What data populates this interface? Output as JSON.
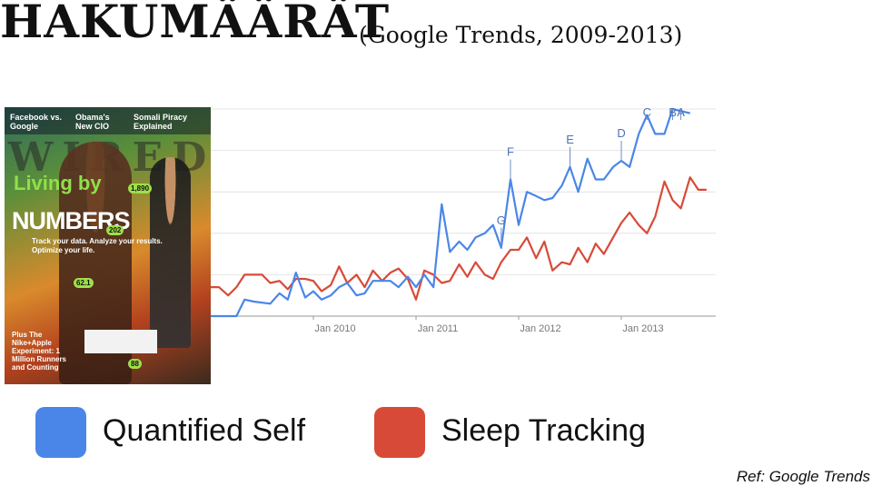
{
  "header": {
    "title": "HAKUMÄÄRÄT",
    "subtitle": "(Google Trends, 2009-2013)"
  },
  "cover": {
    "headline_1": "Facebook vs. Google",
    "headline_2": "Obama's New CIO",
    "headline_3": "Somali Piracy Explained",
    "masthead": "WIRED",
    "living": "Living by",
    "numbers": "NUMBERS",
    "tagline": "Track your data. Analyze your results. Optimize your life.",
    "badge_1": "1,890",
    "badge_2": "202",
    "badge_3": "62.1",
    "badge_4": "88",
    "plus": "Plus The Nike+Apple Experiment: 1 Million Runners and Counting"
  },
  "legend": [
    {
      "label": "Quantified Self",
      "color": "#4a86e8"
    },
    {
      "label": "Sleep Tracking",
      "color": "#d84a38"
    }
  ],
  "footer": {
    "ref": "Ref: Google Trends"
  },
  "chart_data": {
    "type": "line",
    "grid": true,
    "x_ticks": [
      "Jan 2010",
      "Jan 2011",
      "Jan 2012",
      "Jan 2013"
    ],
    "x_range": [
      2009.0,
      2013.92
    ],
    "ylim": [
      0,
      100
    ],
    "series": [
      {
        "name": "Quantified Self",
        "color": "#4a86e8",
        "points": [
          [
            2009.0,
            0
          ],
          [
            2009.17,
            0
          ],
          [
            2009.25,
            0
          ],
          [
            2009.33,
            8
          ],
          [
            2009.42,
            7
          ],
          [
            2009.58,
            6
          ],
          [
            2009.67,
            11
          ],
          [
            2009.75,
            8
          ],
          [
            2009.83,
            21
          ],
          [
            2009.92,
            9
          ],
          [
            2010.0,
            12
          ],
          [
            2010.08,
            8
          ],
          [
            2010.17,
            10
          ],
          [
            2010.25,
            14
          ],
          [
            2010.33,
            16
          ],
          [
            2010.42,
            10
          ],
          [
            2010.5,
            11
          ],
          [
            2010.58,
            17
          ],
          [
            2010.67,
            17
          ],
          [
            2010.75,
            17
          ],
          [
            2010.83,
            14
          ],
          [
            2010.92,
            19
          ],
          [
            2011.0,
            14
          ],
          [
            2011.08,
            20
          ],
          [
            2011.17,
            14
          ],
          [
            2011.25,
            54
          ],
          [
            2011.33,
            31
          ],
          [
            2011.42,
            36
          ],
          [
            2011.5,
            32
          ],
          [
            2011.58,
            38
          ],
          [
            2011.67,
            40
          ],
          [
            2011.75,
            44
          ],
          [
            2011.83,
            33
          ],
          [
            2011.92,
            66
          ],
          [
            2012.0,
            44
          ],
          [
            2012.08,
            60
          ],
          [
            2012.17,
            58
          ],
          [
            2012.25,
            56
          ],
          [
            2012.33,
            57
          ],
          [
            2012.42,
            63
          ],
          [
            2012.5,
            72
          ],
          [
            2012.58,
            60
          ],
          [
            2012.67,
            76
          ],
          [
            2012.75,
            66
          ],
          [
            2012.83,
            66
          ],
          [
            2012.92,
            72
          ],
          [
            2013.0,
            75
          ],
          [
            2013.08,
            72
          ],
          [
            2013.17,
            88
          ],
          [
            2013.25,
            97
          ],
          [
            2013.33,
            88
          ],
          [
            2013.42,
            88
          ],
          [
            2013.5,
            100
          ],
          [
            2013.58,
            99
          ],
          [
            2013.67,
            98
          ]
        ],
        "markers": [
          {
            "label": "G",
            "x": 2011.83
          },
          {
            "label": "F",
            "x": 2011.92
          },
          {
            "label": "E",
            "x": 2012.5
          },
          {
            "label": "D",
            "x": 2013.0
          },
          {
            "label": "C",
            "x": 2013.25
          },
          {
            "label": "B",
            "x": 2013.5
          },
          {
            "label": "A",
            "x": 2013.58
          }
        ]
      },
      {
        "name": "Sleep Tracking",
        "color": "#d84a38",
        "points": [
          [
            2009.0,
            14
          ],
          [
            2009.08,
            14
          ],
          [
            2009.17,
            10
          ],
          [
            2009.25,
            14
          ],
          [
            2009.33,
            20
          ],
          [
            2009.42,
            20
          ],
          [
            2009.5,
            20
          ],
          [
            2009.58,
            16
          ],
          [
            2009.67,
            17
          ],
          [
            2009.75,
            13
          ],
          [
            2009.83,
            18
          ],
          [
            2009.92,
            18
          ],
          [
            2010.0,
            17
          ],
          [
            2010.08,
            12
          ],
          [
            2010.17,
            15
          ],
          [
            2010.25,
            24
          ],
          [
            2010.33,
            16
          ],
          [
            2010.42,
            20
          ],
          [
            2010.5,
            14
          ],
          [
            2010.58,
            22
          ],
          [
            2010.67,
            17
          ],
          [
            2010.75,
            21
          ],
          [
            2010.83,
            23
          ],
          [
            2010.92,
            18
          ],
          [
            2011.0,
            8
          ],
          [
            2011.08,
            22
          ],
          [
            2011.17,
            20
          ],
          [
            2011.25,
            16
          ],
          [
            2011.33,
            17
          ],
          [
            2011.42,
            25
          ],
          [
            2011.5,
            19
          ],
          [
            2011.58,
            26
          ],
          [
            2011.67,
            20
          ],
          [
            2011.75,
            18
          ],
          [
            2011.83,
            26
          ],
          [
            2011.92,
            32
          ],
          [
            2012.0,
            32
          ],
          [
            2012.08,
            38
          ],
          [
            2012.17,
            28
          ],
          [
            2012.25,
            36
          ],
          [
            2012.33,
            22
          ],
          [
            2012.42,
            26
          ],
          [
            2012.5,
            25
          ],
          [
            2012.58,
            33
          ],
          [
            2012.67,
            26
          ],
          [
            2012.75,
            35
          ],
          [
            2012.83,
            30
          ],
          [
            2012.92,
            38
          ],
          [
            2013.0,
            45
          ],
          [
            2013.08,
            50
          ],
          [
            2013.17,
            44
          ],
          [
            2013.25,
            40
          ],
          [
            2013.33,
            48
          ],
          [
            2013.42,
            65
          ],
          [
            2013.5,
            56
          ],
          [
            2013.58,
            52
          ],
          [
            2013.67,
            67
          ],
          [
            2013.75,
            61
          ],
          [
            2013.83,
            61
          ]
        ]
      }
    ]
  }
}
